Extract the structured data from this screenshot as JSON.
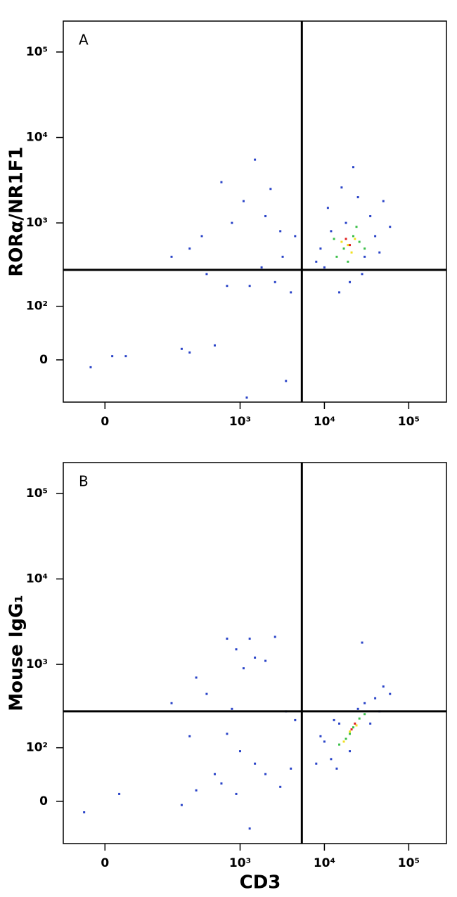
{
  "chart_data": [
    {
      "type": "scatter",
      "panel_label": "A",
      "y_label": "RORα/NR1F1",
      "xlim": [
        -70,
        280000
      ],
      "ylim": [
        -70,
        230000
      ],
      "xticks": [
        0,
        {
          "value": 1000,
          "label": "10³"
        },
        {
          "value": 10000,
          "label": "10⁴"
        },
        {
          "value": 100000,
          "label": "10⁵"
        }
      ],
      "yticks": [
        0,
        {
          "value": 100,
          "label": "10²"
        },
        {
          "value": 1000,
          "label": "10³"
        },
        {
          "value": 10000,
          "label": "10⁴"
        },
        {
          "value": 100000,
          "label": "10⁵"
        }
      ],
      "gates": {
        "x": 5400,
        "y": 280
      },
      "series": [
        {
          "color": "#2a44c8",
          "x": [
            -20,
            10,
            30,
            200,
            250,
            500,
            1200,
            3500,
            600,
            1500,
            2300,
            1100,
            800,
            250,
            400,
            1800,
            2600,
            4000,
            3000,
            1300,
            700,
            2000,
            3200,
            4500,
            350,
            150,
            10000,
            12000,
            30000,
            35000,
            25000,
            15000,
            20000,
            40000,
            60000,
            9000,
            11000,
            28000,
            18000,
            45000,
            22000,
            50000,
            8000,
            16000
          ],
          "values": [
            -10,
            5,
            5,
            15,
            10,
            20,
            -60,
            -30,
            3000,
            5500,
            2500,
            1800,
            1000,
            500,
            250,
            300,
            200,
            150,
            800,
            180,
            180,
            1200,
            400,
            700,
            700,
            400,
            300,
            800,
            400,
            1200,
            2000,
            150,
            200,
            700,
            900,
            500,
            1500,
            250,
            1000,
            450,
            4500,
            1800,
            350,
            2600
          ]
        },
        {
          "color": "#3cc04a",
          "x": [
            17000,
            22000,
            14000,
            26000,
            19000,
            24000,
            13000,
            30000
          ],
          "values": [
            500,
            700,
            400,
            600,
            350,
            900,
            650,
            500
          ]
        },
        {
          "color": "#f0e020",
          "x": [
            19000,
            21000,
            16000,
            23000
          ],
          "values": [
            550,
            450,
            600,
            650
          ]
        },
        {
          "color": "#e02020",
          "x": [
            20000,
            18000
          ],
          "values": [
            550,
            650
          ]
        }
      ]
    },
    {
      "type": "scatter",
      "panel_label": "B",
      "y_label": "Mouse IgG₁",
      "x_label": "CD3",
      "xlim": [
        -70,
        280000
      ],
      "ylim": [
        -70,
        230000
      ],
      "xticks": [
        0,
        {
          "value": 1000,
          "label": "10³"
        },
        {
          "value": 10000,
          "label": "10⁴"
        },
        {
          "value": 100000,
          "label": "10⁵"
        }
      ],
      "yticks": [
        0,
        {
          "value": 100,
          "label": "10²"
        },
        {
          "value": 1000,
          "label": "10³"
        },
        {
          "value": 10000,
          "label": "10⁴"
        },
        {
          "value": 100000,
          "label": "10⁵"
        }
      ],
      "gates": {
        "x": 5400,
        "y": 280
      },
      "series": [
        {
          "color": "#2a44c8",
          "x": [
            -30,
            20,
            200,
            300,
            500,
            600,
            900,
            1300,
            1000,
            1500,
            2000,
            3000,
            4000,
            700,
            900,
            1300,
            1100,
            2000,
            2600,
            1500,
            300,
            400,
            150,
            800,
            3500,
            4500,
            700,
            250,
            8000,
            10000,
            12000,
            15000,
            30000,
            40000,
            50000,
            60000,
            35000,
            20000,
            9000,
            25000,
            14000,
            45000,
            28000,
            13000
          ],
          "values": [
            -15,
            10,
            -5,
            15,
            40,
            25,
            10,
            -40,
            90,
            60,
            40,
            20,
            50,
            2000,
            1500,
            2000,
            900,
            1100,
            2100,
            1200,
            700,
            450,
            350,
            300,
            280,
            220,
            150,
            140,
            60,
            120,
            70,
            200,
            350,
            400,
            550,
            450,
            200,
            90,
            140,
            300,
            50,
            280,
            1800,
            220
          ]
        },
        {
          "color": "#3cc04a",
          "x": [
            18000,
            22000,
            15000,
            26000,
            30000,
            20000
          ],
          "values": [
            130,
            180,
            110,
            230,
            260,
            150
          ]
        },
        {
          "color": "#f0e020",
          "x": [
            20000,
            24000,
            17000
          ],
          "values": [
            160,
            190,
            120
          ]
        },
        {
          "color": "#e02020",
          "x": [
            21000,
            23000
          ],
          "values": [
            170,
            200
          ]
        }
      ]
    }
  ]
}
